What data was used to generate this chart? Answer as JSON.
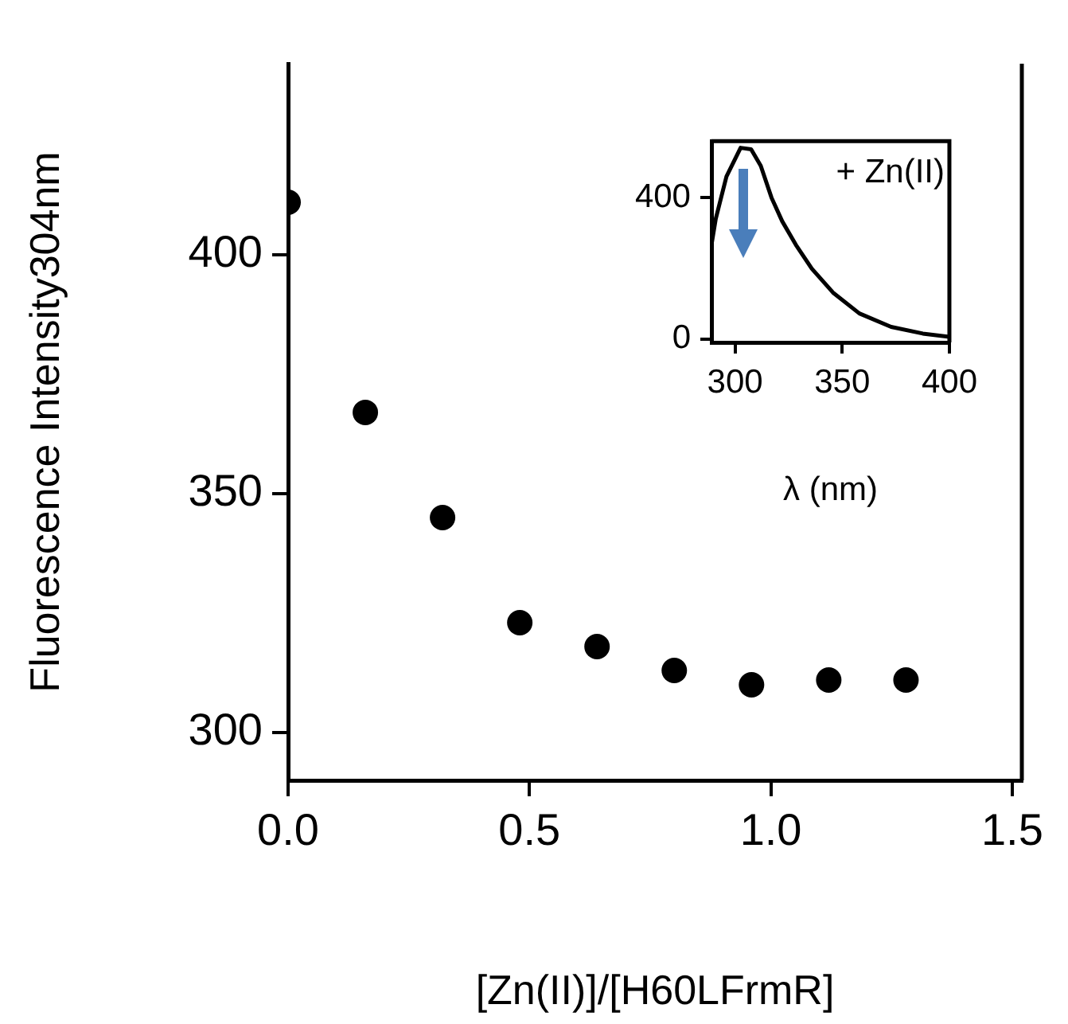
{
  "chart_data": [
    {
      "type": "scatter",
      "xlabel": "[Zn(II)]/[H60LFrmR]",
      "ylabel": "Fluorescence Intensity304nm",
      "x": [
        0,
        0.16,
        0.32,
        0.48,
        0.64,
        0.8,
        0.96,
        1.12,
        1.28
      ],
      "values": [
        411,
        367,
        345,
        323,
        318,
        313,
        310,
        311,
        311
      ],
      "color": "#000000",
      "marker": "circle",
      "xlim": [
        0,
        1.52
      ],
      "ylim": [
        290,
        440
      ],
      "xticks": [
        {
          "value": 0,
          "label": "0.0"
        },
        {
          "value": 0.5,
          "label": "0.5"
        },
        {
          "value": 1,
          "label": "1.0"
        },
        {
          "value": 1.5,
          "label": "1.5"
        }
      ],
      "yticks": [
        300,
        350,
        400
      ]
    },
    {
      "type": "line",
      "xlabel": "λ (nm)",
      "x": [
        289,
        291,
        296,
        302.6,
        307.5,
        312,
        317,
        322,
        328.4,
        335.8,
        345.7,
        358,
        372.8,
        387.6,
        400
      ],
      "values": [
        266,
        340,
        460,
        541,
        537,
        490,
        400,
        333,
        266,
        199,
        131,
        72,
        34,
        15,
        6
      ],
      "color": "#000000",
      "marker": "none",
      "line_style": "solid",
      "xlim": [
        289,
        400
      ],
      "ylim": [
        -10,
        560
      ],
      "xticks": [
        300,
        350,
        400
      ],
      "yticks": [
        0,
        400
      ],
      "annotations": [
        "+ Zn(II)"
      ]
    }
  ]
}
